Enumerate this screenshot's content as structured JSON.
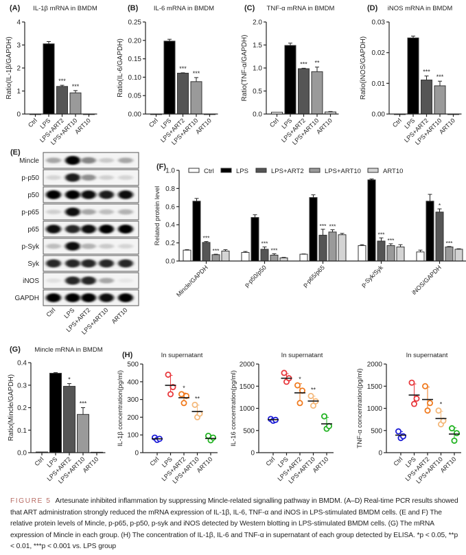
{
  "categories": [
    "Ctrl",
    "LPS",
    "LPS+ART2",
    "LPS+ART10",
    "ART10"
  ],
  "group_colors": {
    "Ctrl": "#ffffff",
    "LPS": "#000000",
    "LPS+ART2": "#555555",
    "LPS+ART10": "#9a9a9a",
    "ART10": "#d4d4d4"
  },
  "scatter_colors": [
    "#1c1cd6",
    "#e8383d",
    "#f07a1e",
    "#f4b87a",
    "#22b322"
  ],
  "chart_data": [
    {
      "panel": "(A)",
      "type": "bar",
      "title": "IL-1β mRNA in BMDM",
      "ylabel": "Ratio(IL-1β/GAPDH)",
      "ylim": [
        0,
        4
      ],
      "yticks": [
        "0",
        "1",
        "2",
        "3",
        "4"
      ],
      "values": [
        0,
        3.05,
        1.2,
        0.92,
        0
      ],
      "errors": [
        0,
        0.1,
        0.05,
        0.1,
        0
      ],
      "significance": [
        "",
        "",
        "***",
        "***",
        ""
      ]
    },
    {
      "panel": "(B)",
      "type": "bar",
      "title": "IL-6 mRNA in BMDM",
      "ylabel": "Ratio(IL-6/GAPDH)",
      "ylim": [
        0,
        0.25
      ],
      "yticks": [
        "0.00",
        "0.05",
        "0.10",
        "0.15",
        "0.20",
        "0.25"
      ],
      "values": [
        0,
        0.198,
        0.111,
        0.088,
        0
      ],
      "errors": [
        0,
        0.005,
        0.001,
        0.011,
        0
      ],
      "significance": [
        "",
        "",
        "***",
        "***",
        ""
      ]
    },
    {
      "panel": "(C)",
      "type": "bar",
      "title": "TNF-α mRNA in BMDM",
      "ylabel": "Ratio(TNF-α/GAPDH)",
      "ylim": [
        0,
        2.0
      ],
      "yticks": [
        "0.0",
        "0.5",
        "1.0",
        "1.5",
        "2.0"
      ],
      "values": [
        0.04,
        1.49,
        0.985,
        0.92,
        0.045
      ],
      "errors": [
        0,
        0.05,
        0.01,
        0.1,
        0.01
      ],
      "significance": [
        "",
        "",
        "***",
        "**",
        ""
      ]
    },
    {
      "panel": "(D)",
      "type": "bar",
      "title": "iNOS mRNA in BMDM",
      "ylabel": "Ratio(iNOS/GAPDH)",
      "ylim": [
        0,
        0.03
      ],
      "yticks": [
        "0.00",
        "0.01",
        "0.02",
        "0.03"
      ],
      "values": [
        0,
        0.0248,
        0.0111,
        0.0092,
        0
      ],
      "errors": [
        0,
        0.0006,
        0.0013,
        0.0015,
        0
      ],
      "significance": [
        "",
        "",
        "***",
        "***",
        ""
      ]
    },
    {
      "panel": "(F)",
      "type": "bar",
      "ylabel": "Related protein level",
      "ylim": [
        0,
        1.0
      ],
      "yticks": [
        "0.0",
        "0.2",
        "0.4",
        "0.6",
        "0.8",
        "1.0"
      ],
      "legend_placement": "top",
      "groups": [
        "Mincle/GAPDH",
        "p-p50/p50",
        "p-p65/p65",
        "p-Syk/Syk",
        "iNOS/GAPDH"
      ],
      "series": [
        {
          "name": "Ctrl",
          "values": [
            0.12,
            0.095,
            0.075,
            0.17,
            0.1
          ],
          "errors": [
            0.005,
            0.01,
            0.003,
            0.01,
            0.02
          ],
          "significance": [
            "",
            "",
            "",
            "",
            ""
          ]
        },
        {
          "name": "LPS",
          "values": [
            0.66,
            0.48,
            0.7,
            0.895,
            0.66
          ],
          "errors": [
            0.03,
            0.03,
            0.03,
            0.01,
            0.075
          ],
          "significance": [
            "",
            "",
            "",
            "",
            ""
          ]
        },
        {
          "name": "LPS+ART2",
          "values": [
            0.205,
            0.13,
            0.285,
            0.22,
            0.54
          ],
          "errors": [
            0.01,
            0.025,
            0.065,
            0.035,
            0.035
          ],
          "significance": [
            "***",
            "***",
            "***",
            "***",
            "*"
          ]
        },
        {
          "name": "LPS+ART10",
          "values": [
            0.07,
            0.065,
            0.32,
            0.17,
            0.155
          ],
          "errors": [
            0.005,
            0.015,
            0.025,
            0.02,
            0.005
          ],
          "significance": [
            "***",
            "***",
            "***",
            "***",
            "***"
          ]
        },
        {
          "name": "ART10",
          "values": [
            0.11,
            0.035,
            0.29,
            0.155,
            0.13
          ],
          "errors": [
            0.015,
            0.005,
            0.015,
            0.025,
            0.005
          ],
          "significance": [
            "",
            "",
            "",
            "",
            ""
          ]
        }
      ]
    },
    {
      "panel": "(G)",
      "type": "bar",
      "title": "Mincle mRNA in BMDM",
      "ylabel": "Ratio(Mincle/GAPDH)",
      "ylim": [
        0,
        0.4
      ],
      "yticks": [
        "0.0",
        "0.1",
        "0.2",
        "0.3",
        "0.4"
      ],
      "values": [
        0.003,
        0.353,
        0.295,
        0.17,
        0.002
      ],
      "errors": [
        0,
        0.003,
        0.012,
        0.03,
        0
      ],
      "significance": [
        "",
        "",
        "*",
        "***",
        ""
      ]
    },
    {
      "panel": "(H)",
      "type": "scatter",
      "title": "In supernatant",
      "ylabel": "IL-1β concentration(pg/ml)",
      "ylim": [
        0,
        500
      ],
      "yticks": [
        "0",
        "100",
        "200",
        "300",
        "400",
        "500"
      ],
      "points": [
        [
          85,
          72,
          78
        ],
        [
          440,
          330,
          370
        ],
        [
          330,
          280,
          320
        ],
        [
          270,
          200,
          220
        ],
        [
          95,
          70,
          85
        ]
      ],
      "means": [
        78,
        380,
        310,
        232,
        80
      ],
      "significance": [
        "",
        "",
        "*",
        "**",
        ""
      ]
    },
    {
      "type": "scatter",
      "title": "In supernatant",
      "ylabel": "IL-16 concentration(pg/ml)",
      "ylim": [
        0,
        2000
      ],
      "yticks": [
        "0",
        "500",
        "1000",
        "1500",
        "2000"
      ],
      "points": [
        [
          760,
          720,
          740
        ],
        [
          1800,
          1600,
          1680
        ],
        [
          1520,
          1120,
          1400
        ],
        [
          1280,
          1060,
          1160
        ],
        [
          820,
          540,
          600
        ]
      ],
      "means": [
        745,
        1680,
        1350,
        1165,
        650
      ],
      "significance": [
        "",
        "",
        "*",
        "**",
        ""
      ]
    },
    {
      "type": "scatter",
      "title": "In supernatant",
      "ylabel": "TNF-α concentration(pg/ml)",
      "ylim": [
        0,
        2000
      ],
      "yticks": [
        "0",
        "500",
        "1000",
        "1500",
        "2000"
      ],
      "points": [
        [
          480,
          330,
          370
        ],
        [
          1580,
          1100,
          1220
        ],
        [
          1500,
          950,
          1120
        ],
        [
          950,
          640,
          720
        ],
        [
          550,
          270,
          440
        ]
      ],
      "means": [
        395,
        1300,
        1200,
        770,
        420
      ],
      "significance": [
        "",
        "",
        "",
        "*",
        ""
      ]
    }
  ],
  "western_blot": {
    "panel": "(E)",
    "rows": [
      "Mincle",
      "p-p50",
      "p50",
      "p-p65",
      "p65",
      "p-Syk",
      "Syk",
      "iNOS",
      "GAPDH"
    ],
    "lanes": [
      "Ctrl",
      "LPS",
      "LPS+ART2",
      "LPS+ART10",
      "ART10"
    ],
    "band_intensity": [
      [
        0.3,
        1.0,
        0.45,
        0.15,
        0.3
      ],
      [
        0.1,
        0.9,
        0.4,
        0.12,
        0.1
      ],
      [
        1.0,
        1.0,
        0.95,
        0.9,
        0.95
      ],
      [
        0.12,
        0.95,
        0.3,
        0.2,
        0.25
      ],
      [
        0.95,
        0.85,
        0.95,
        1.0,
        1.0
      ],
      [
        0.2,
        0.95,
        0.25,
        0.15,
        0.1
      ],
      [
        0.85,
        0.85,
        0.85,
        0.85,
        0.85
      ],
      [
        0.05,
        0.85,
        0.85,
        0.3,
        0.02
      ],
      [
        1.0,
        1.0,
        1.0,
        0.95,
        1.0
      ]
    ]
  },
  "caption": {
    "figure_number": "FIGURE 5",
    "text": "Artesunate inhibited inflammation by suppressing Mincle-related signalling pathway in BMDM. (A–D) Real-time PCR results showed that ART administration strongly reduced the mRNA expression of IL-1β, IL-6, TNF-α and iNOS in LPS-stimulated BMDM cells. (E and F) The relative protein levels of Mincle, p-p65, p-p50, p-syk and iNOS detected by Western blotting in LPS-stimulated BMDM cells. (G) The mRNA expression of Mincle in each group. (H) The concentration of IL-1β, IL-6 and TNF-α in supernatant of each group detected by ELISA. *p < 0.05, **p < 0.01, ***p < 0.001 vs. LPS group"
  }
}
